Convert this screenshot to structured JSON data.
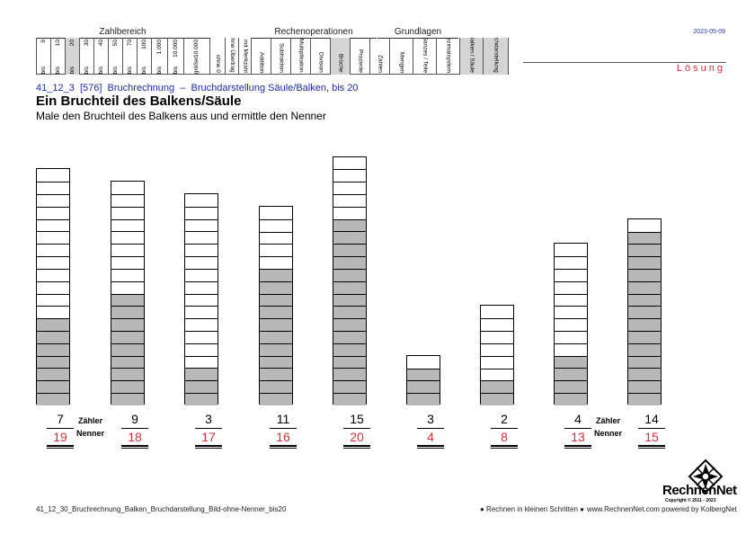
{
  "header": {
    "groups": [
      {
        "key": "zahlbereich",
        "label": "Zahlbereich"
      },
      {
        "key": "rechenoperationen",
        "label": "Rechenoperationen"
      },
      {
        "key": "grundlagen",
        "label": "Grundlagen"
      }
    ],
    "cells": [
      {
        "top": "9",
        "bottom": "bis",
        "shaded": false
      },
      {
        "top": "10",
        "bottom": "bis",
        "shaded": false
      },
      {
        "top": "20",
        "bottom": "bis",
        "shaded": true
      },
      {
        "top": "30",
        "bottom": "bis",
        "shaded": false
      },
      {
        "top": "40",
        "bottom": "bis",
        "shaded": false
      },
      {
        "top": "50",
        "bottom": "bis",
        "shaded": false
      },
      {
        "top": "70",
        "bottom": "bis",
        "shaded": false
      },
      {
        "top": "100",
        "bottom": "bis",
        "shaded": false
      },
      {
        "top": "1.000",
        "bottom": "bis",
        "shaded": false
      },
      {
        "top": "10.000",
        "bottom": "bis",
        "shaded": false
      },
      {
        "top": "10.000",
        "bottom": "größer",
        "shaded": false
      },
      {
        "top": "",
        "bottom": "ohne 0",
        "shaded": false
      },
      {
        "top": "",
        "bottom": "ohne Übertrag",
        "shaded": false
      },
      {
        "top": "",
        "bottom": "mit Merkzahl",
        "shaded": false
      },
      {
        "top": "",
        "bottom": "Addition",
        "shaded": false
      },
      {
        "top": "",
        "bottom": "Subtraktion",
        "shaded": false
      },
      {
        "top": "",
        "bottom": "Multiplikation",
        "shaded": false
      },
      {
        "top": "",
        "bottom": "Division",
        "shaded": false
      },
      {
        "top": "",
        "bottom": "Brüche",
        "shaded": true
      },
      {
        "top": "",
        "bottom": "Prozente",
        "shaded": false
      },
      {
        "top": "",
        "bottom": "Zahlen",
        "shaded": false
      },
      {
        "top": "",
        "bottom": "Mengen",
        "shaded": false
      },
      {
        "top": "",
        "bottom": "Ganzes / Teile",
        "shaded": false
      },
      {
        "top": "",
        "bottom": "Dezimalsystem",
        "shaded": false
      },
      {
        "top": "",
        "bottom": "Balken / Säule",
        "shaded": true
      },
      {
        "top": "",
        "bottom": "Bruchdarstellung",
        "shaded": true
      }
    ],
    "date": "2023-05-09",
    "solution_label": "Lösung"
  },
  "breadcrumb": {
    "code": "41_12_3",
    "id": "[576]",
    "topic": "Bruchrechnung",
    "separator": "–",
    "subtopic": "Bruchdarstellung Säule/Balken, bis 20"
  },
  "title": "Ein Bruchteil des Balkens/Säule",
  "subtitle": "Male den Bruchteil des Balkens aus und ermittle den Nenner",
  "labels": {
    "numerator": "Zähler",
    "denominator": "Nenner"
  },
  "bars": [
    {
      "numerator": 7,
      "denominator": 19
    },
    {
      "numerator": 9,
      "denominator": 18
    },
    {
      "numerator": 3,
      "denominator": 17
    },
    {
      "numerator": 11,
      "denominator": 16
    },
    {
      "numerator": 15,
      "denominator": 20
    },
    {
      "numerator": 3,
      "denominator": 4
    },
    {
      "numerator": 2,
      "denominator": 8
    },
    {
      "numerator": 4,
      "denominator": 13
    },
    {
      "numerator": 14,
      "denominator": 15
    }
  ],
  "footer": {
    "filename": "41_12_30_Bruchrechnung_Balken_Bruchdarstellung_Bild-ohne-Nenner_bis20",
    "tagline": "● Rechnen in kleinen Schritten ●",
    "website": "www.RechnenNet.com powered by KolbergNet",
    "logo_text": "RechnenNet",
    "copyright": "Copyright © 2011 - 2023"
  }
}
